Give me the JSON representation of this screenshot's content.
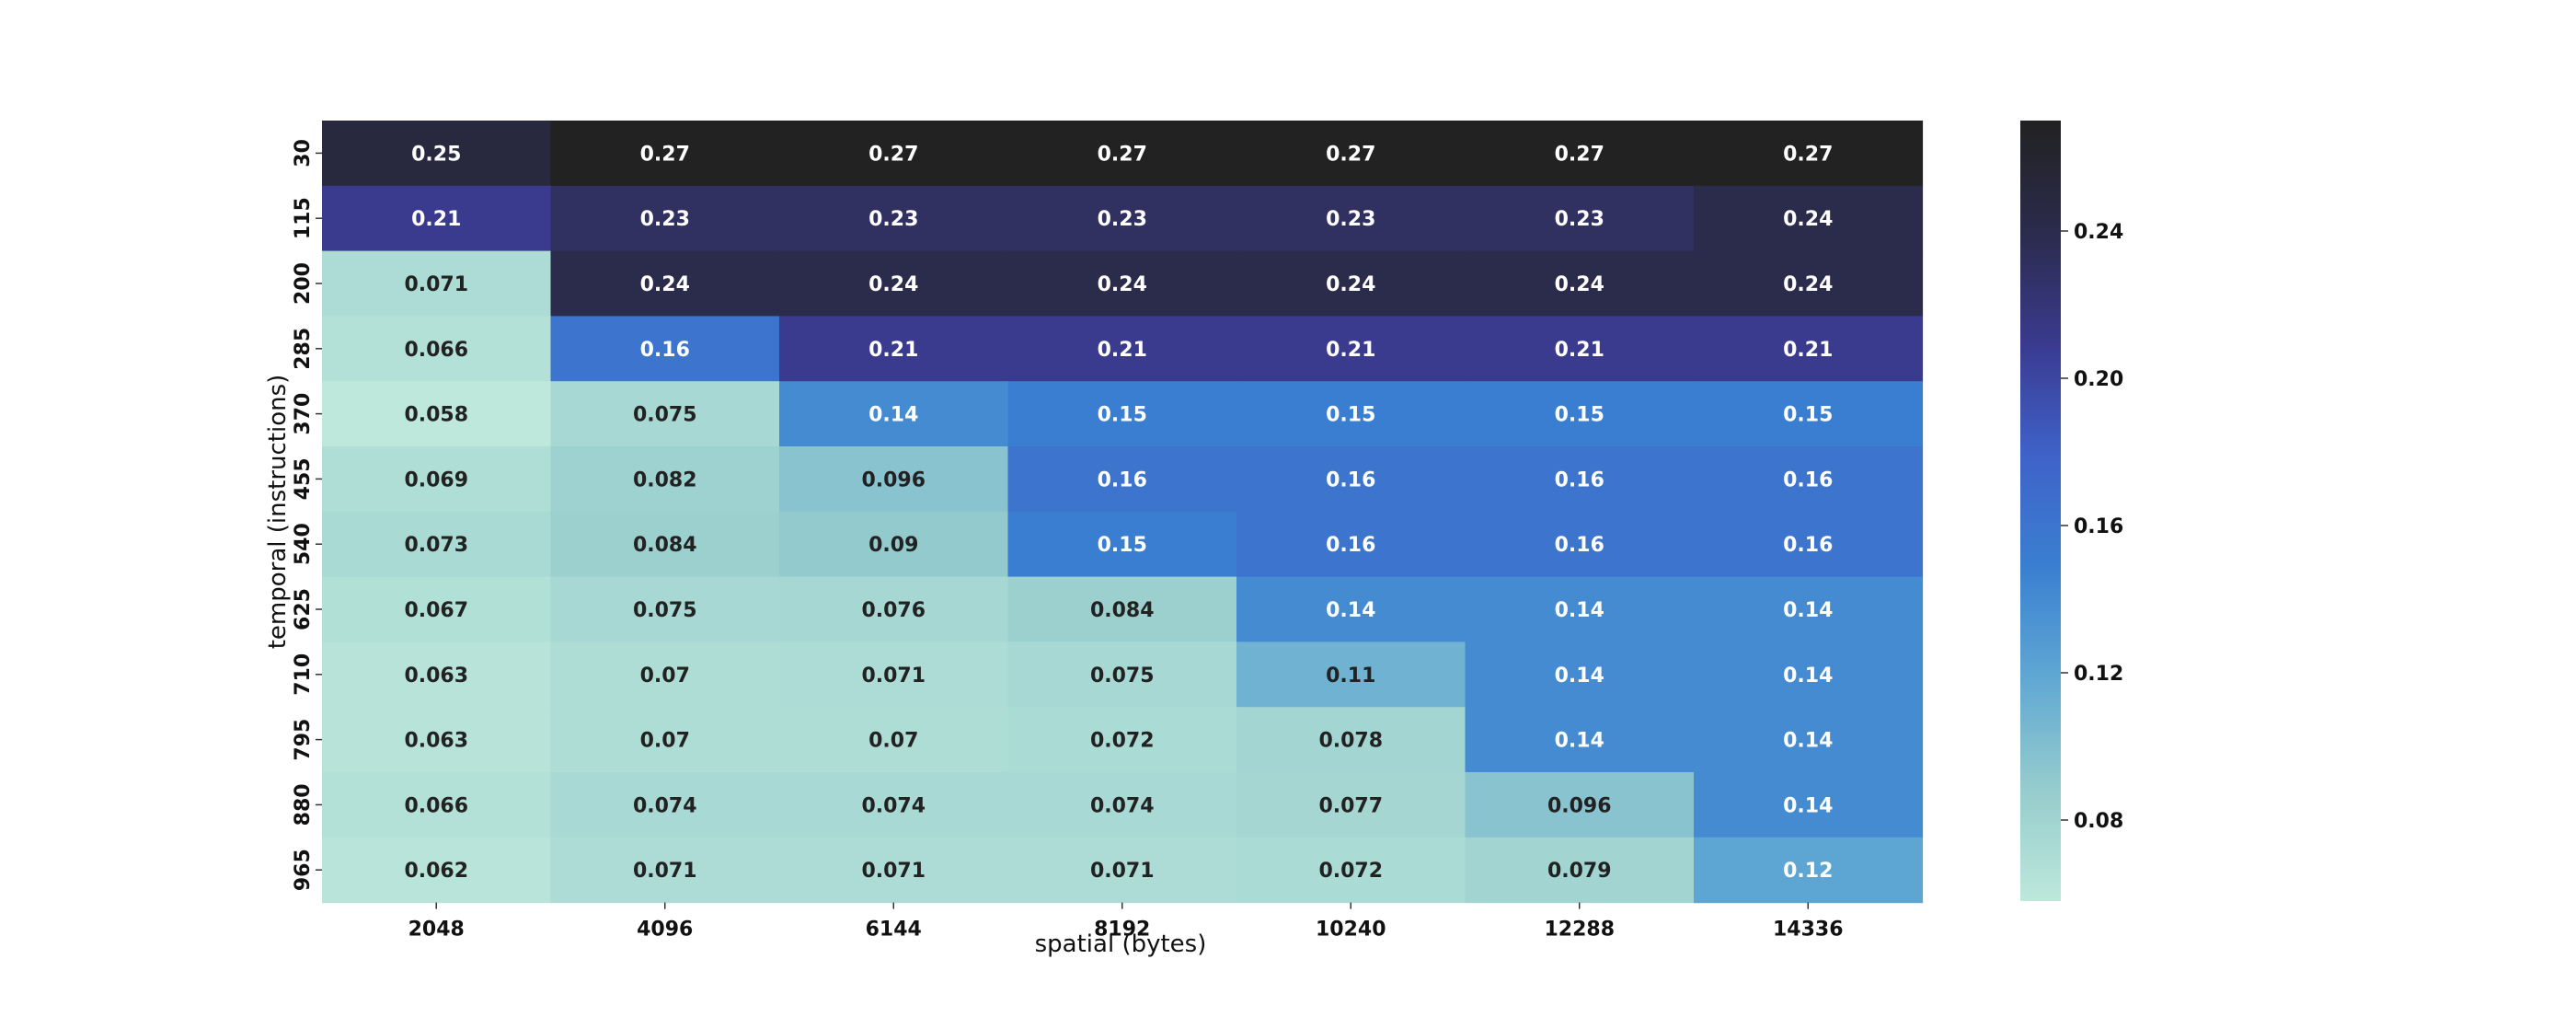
{
  "chart_data": {
    "type": "heatmap",
    "title": "",
    "xlabel": "spatial (bytes)",
    "ylabel": "temporal (instructions)",
    "x": [
      "2048",
      "4096",
      "6144",
      "8192",
      "10240",
      "12288",
      "14336"
    ],
    "y": [
      "30",
      "115",
      "200",
      "285",
      "370",
      "455",
      "540",
      "625",
      "710",
      "795",
      "880",
      "965"
    ],
    "values": [
      [
        0.25,
        0.27,
        0.27,
        0.27,
        0.27,
        0.27,
        0.27
      ],
      [
        0.21,
        0.23,
        0.23,
        0.23,
        0.23,
        0.23,
        0.24
      ],
      [
        0.071,
        0.24,
        0.24,
        0.24,
        0.24,
        0.24,
        0.24
      ],
      [
        0.066,
        0.16,
        0.21,
        0.21,
        0.21,
        0.21,
        0.21
      ],
      [
        0.058,
        0.075,
        0.14,
        0.15,
        0.15,
        0.15,
        0.15
      ],
      [
        0.069,
        0.082,
        0.096,
        0.16,
        0.16,
        0.16,
        0.16
      ],
      [
        0.073,
        0.084,
        0.09,
        0.15,
        0.16,
        0.16,
        0.16
      ],
      [
        0.067,
        0.075,
        0.076,
        0.084,
        0.14,
        0.14,
        0.14
      ],
      [
        0.063,
        0.07,
        0.071,
        0.075,
        0.11,
        0.14,
        0.14
      ],
      [
        0.063,
        0.07,
        0.07,
        0.072,
        0.078,
        0.14,
        0.14
      ],
      [
        0.066,
        0.074,
        0.074,
        0.074,
        0.077,
        0.096,
        0.14
      ],
      [
        0.062,
        0.071,
        0.071,
        0.071,
        0.072,
        0.079,
        0.12
      ]
    ],
    "colorbar": {
      "ticks": [
        "0.08",
        "0.12",
        "0.16",
        "0.20",
        "0.24"
      ],
      "range": [
        0.058,
        0.27
      ],
      "colors": [
        "#bde8db",
        "#96cccd",
        "#5fa8d3",
        "#3a7fd1",
        "#3f62c9",
        "#3a3a8f",
        "#2b2b4c",
        "#222222"
      ]
    },
    "grid": false,
    "legend": "colorbar-right"
  }
}
